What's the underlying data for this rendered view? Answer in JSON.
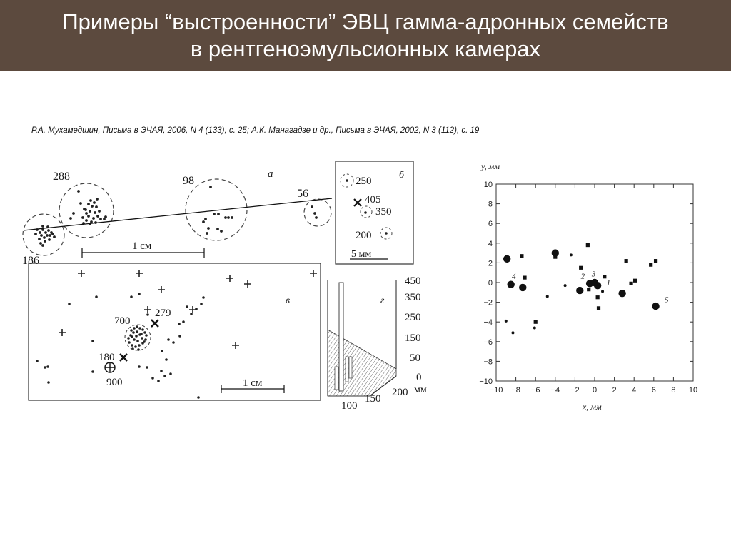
{
  "slide": {
    "title_line1": "Примеры “выстроенности” ЭВЦ гамма-адронных семейств",
    "title_line2": "в рентгеноэмульсионных камерах",
    "citation": "Р.А. Мухамедшин, Письма в ЭЧАЯ, 2006, N 4 (133), с. 25; А.К. Манагадзе и др., Письма в ЭЧАЯ, 2002, N 3 (112), с. 19"
  },
  "colors": {
    "title_bar": "#5c4a3e",
    "ink": "#1a1a1a"
  },
  "figure_left": {
    "panel_a": {
      "letter": "а",
      "labels": [
        "288",
        "98",
        "56",
        "186"
      ],
      "scale": "1 см"
    },
    "panel_b": {
      "letter": "б",
      "labels": [
        "250",
        "405",
        "350",
        "200"
      ],
      "scale": "5 мм"
    },
    "panel_v": {
      "letter": "в",
      "labels": [
        "700",
        "279",
        "180",
        "900"
      ],
      "scale": "1 см"
    },
    "panel_g": {
      "letter": "г",
      "z_ticks": [
        "450",
        "350",
        "250",
        "150",
        "50",
        "0"
      ],
      "x_ticks": [
        "100",
        "150",
        "200"
      ],
      "unit": "мм"
    }
  },
  "figure_right": {
    "ylabel": "y, мм",
    "xlabel": "x, мм",
    "chart_data": {
      "type": "scatter",
      "xlabel": "x, мм",
      "ylabel": "y, мм",
      "xlim": [
        -10,
        10
      ],
      "ylim": [
        -10,
        10
      ],
      "x_ticks": [
        "−10",
        "−8",
        "−6",
        "−4",
        "−2",
        "0",
        "2",
        "4",
        "6",
        "8",
        "10"
      ],
      "y_ticks": [
        "10",
        "8",
        "6",
        "4",
        "2",
        "0",
        "−2",
        "−4",
        "−6",
        "−8",
        "−10"
      ],
      "grid": false,
      "annotations": [
        {
          "text": "1",
          "x": 1.2,
          "y": -0.3
        },
        {
          "text": "2",
          "x": -1.4,
          "y": 0.4
        },
        {
          "text": "3",
          "x": -0.3,
          "y": 0.6
        },
        {
          "text": "4",
          "x": -8.4,
          "y": 0.4
        },
        {
          "text": "5",
          "x": 7.1,
          "y": -2.0
        }
      ],
      "series": [
        {
          "marker": "large-circle",
          "points": [
            [
              -8.9,
              2.4
            ],
            [
              -8.5,
              -0.2
            ],
            [
              -7.3,
              -0.5
            ],
            [
              -4.0,
              3.0
            ],
            [
              -1.5,
              -0.8
            ],
            [
              -0.5,
              -0.1
            ],
            [
              0.0,
              0.0
            ],
            [
              0.3,
              -0.3
            ],
            [
              2.8,
              -1.1
            ],
            [
              6.2,
              -2.4
            ]
          ]
        },
        {
          "marker": "small-square",
          "points": [
            [
              -7.4,
              2.7
            ],
            [
              -7.1,
              0.5
            ],
            [
              -6.0,
              -4.0
            ],
            [
              -4.0,
              2.6
            ],
            [
              -1.4,
              1.5
            ],
            [
              -0.7,
              3.8
            ],
            [
              -0.6,
              -0.7
            ],
            [
              0.3,
              -1.5
            ],
            [
              0.4,
              -2.6
            ],
            [
              1.0,
              0.6
            ],
            [
              3.2,
              2.2
            ],
            [
              3.7,
              -0.1
            ],
            [
              4.1,
              0.2
            ],
            [
              5.7,
              1.8
            ],
            [
              6.2,
              2.2
            ]
          ]
        },
        {
          "marker": "small-dot",
          "points": [
            [
              -9.0,
              -3.9
            ],
            [
              -8.3,
              -5.1
            ],
            [
              -6.1,
              -4.6
            ],
            [
              -4.8,
              -1.4
            ],
            [
              -2.4,
              2.8
            ],
            [
              -3.0,
              -0.3
            ],
            [
              0.8,
              -0.9
            ]
          ]
        }
      ]
    }
  }
}
